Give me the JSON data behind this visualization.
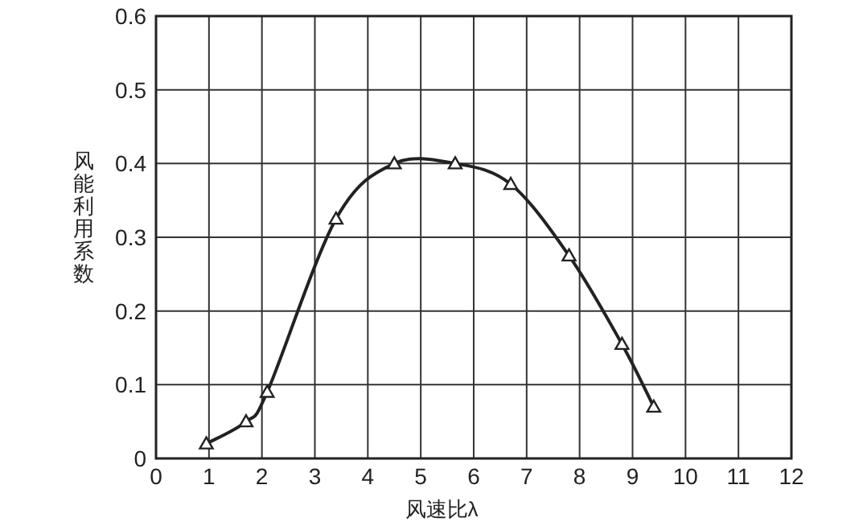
{
  "chart_data": {
    "type": "line",
    "xlabel": "风速比λ",
    "ylabel": "风能利用系数",
    "x": [
      0.95,
      1.7,
      2.1,
      3.4,
      4.5,
      5.65,
      6.7,
      7.8,
      8.8,
      9.4
    ],
    "series": [
      {
        "color": "#222222",
        "values": [
          0.02,
          0.05,
          0.09,
          0.325,
          0.4,
          0.4,
          0.372,
          0.275,
          0.155,
          0.07
        ]
      }
    ],
    "xlim": [
      0,
      12
    ],
    "ylim": [
      0,
      0.6
    ],
    "xticks": [
      0,
      1,
      2,
      3,
      4,
      5,
      6,
      7,
      8,
      9,
      10,
      11,
      12
    ],
    "yticks": [
      0,
      0.1,
      0.2,
      0.3,
      0.4,
      0.5,
      0.6
    ],
    "grid": true,
    "marker": "triangle",
    "line_style": "solid"
  }
}
